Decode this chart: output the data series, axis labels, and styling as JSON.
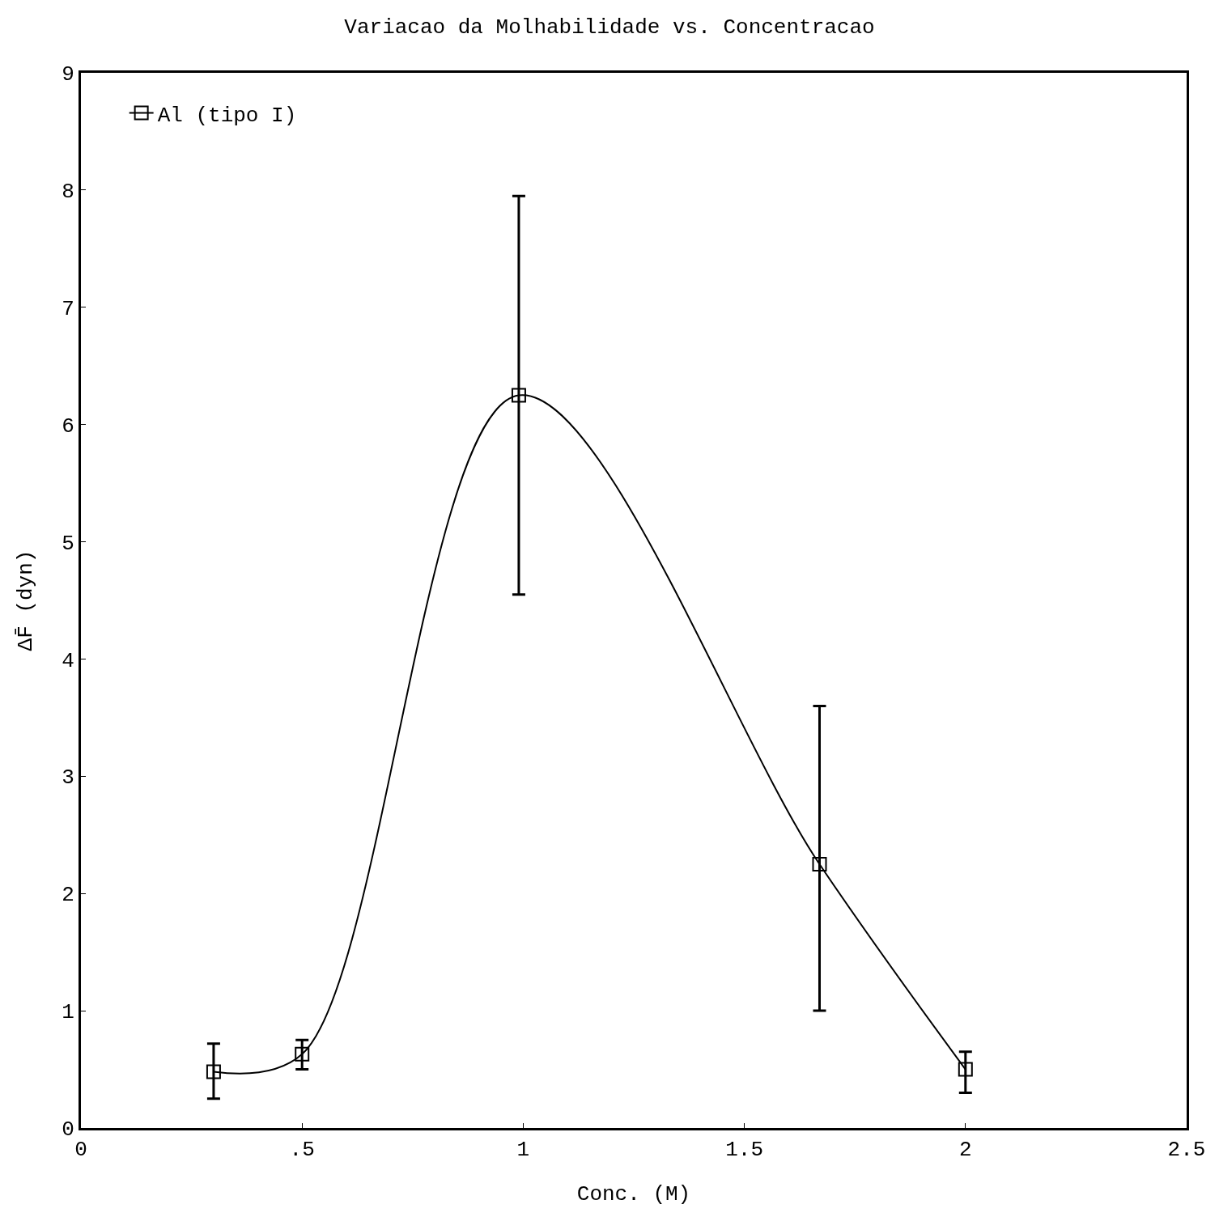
{
  "chart_data": {
    "type": "line",
    "title": "Variacao da Molhabilidade vs. Concentracao",
    "xlabel": "Conc. (M)",
    "ylabel": "ΔF̄ (dyn)",
    "x": [
      0.3,
      0.5,
      0.99,
      1.67,
      2.0
    ],
    "series": [
      {
        "name": "Al (tipo I)",
        "color": "#000000",
        "values": [
          0.48,
          0.63,
          6.25,
          2.25,
          0.5
        ],
        "errors": [
          [
            0.25,
            0.72
          ],
          [
            0.5,
            0.75
          ],
          [
            4.55,
            7.95
          ],
          [
            1.0,
            3.6
          ],
          [
            0.3,
            0.65
          ]
        ]
      }
    ],
    "xlim": [
      0,
      2.5
    ],
    "xticks": [
      0,
      {
        "value": 0.5,
        "label": ".5"
      },
      1,
      1.5,
      2,
      2.5
    ],
    "ylim": [
      0,
      9
    ],
    "yticks": [
      0,
      1,
      2,
      3,
      4,
      5,
      6,
      7,
      8,
      9
    ],
    "grid": false,
    "legend": "top left",
    "marker": "square",
    "line_style": "solid"
  }
}
